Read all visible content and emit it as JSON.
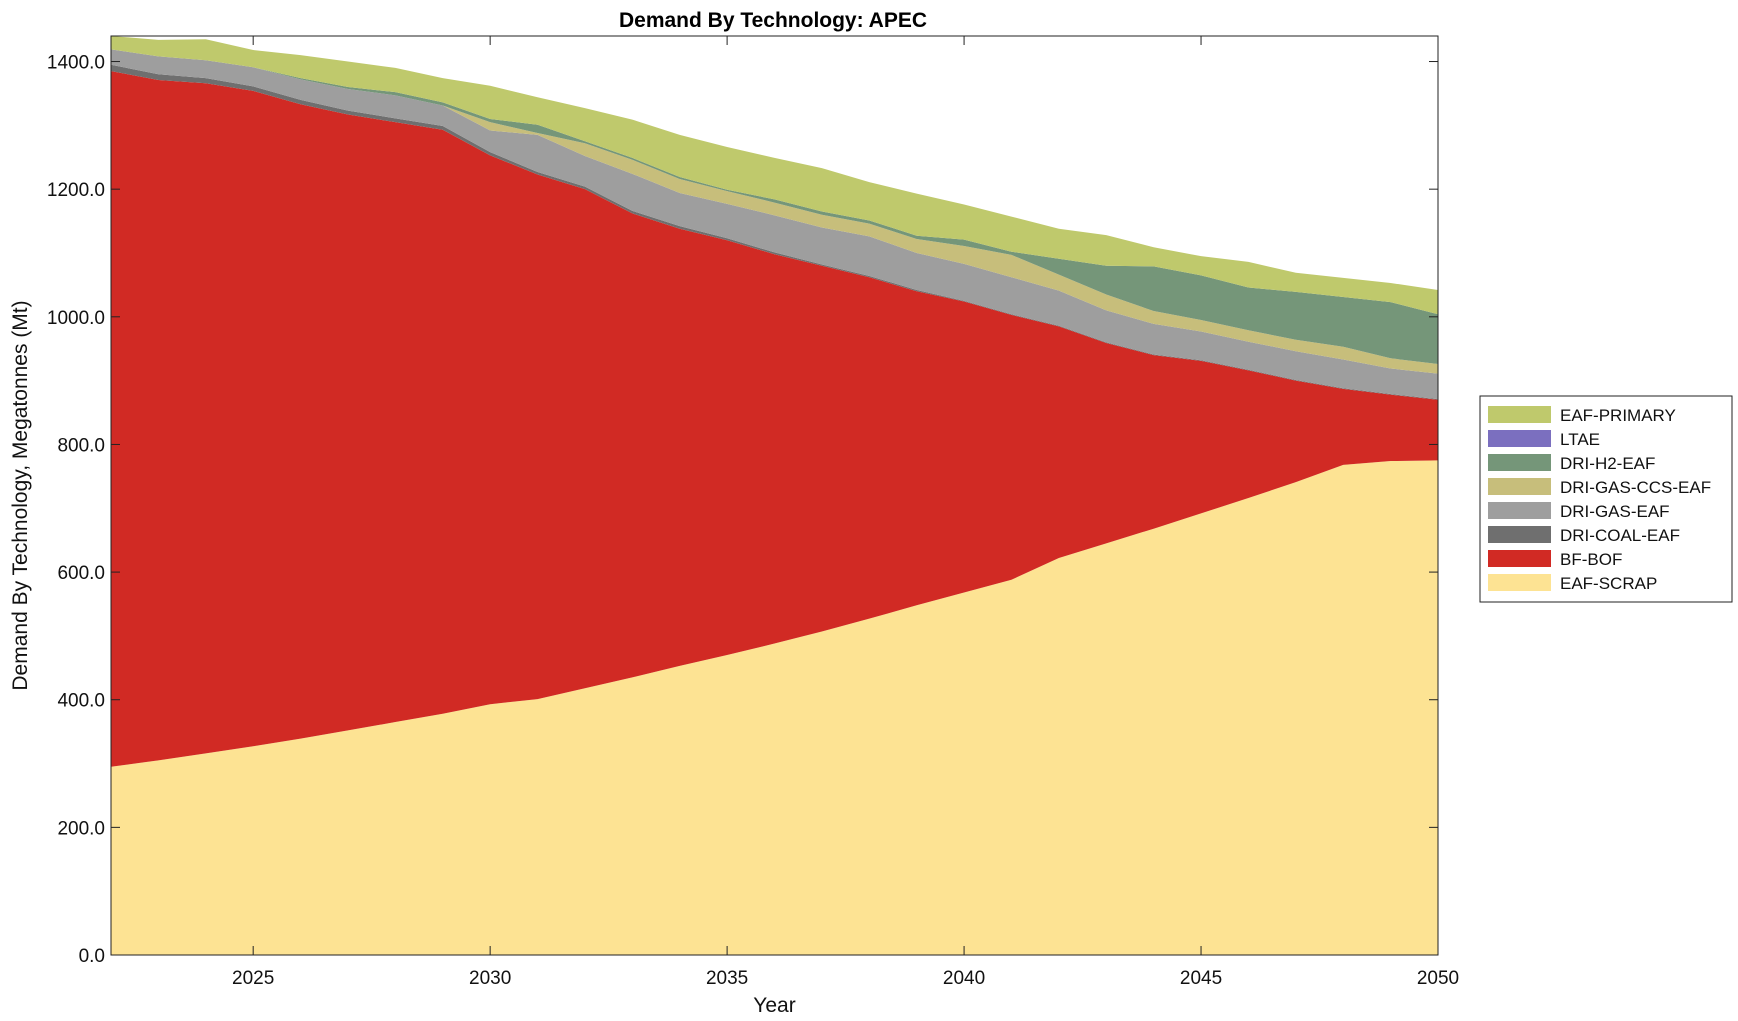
{
  "chart_data": {
    "type": "area",
    "stacked": true,
    "title": "Demand By Technology: APEC",
    "xlabel": "Year",
    "ylabel": "Demand By Technology, Megatonnes (Mt)",
    "xlim": [
      2022,
      2050
    ],
    "ylim": [
      0,
      1440
    ],
    "xticks": [
      2025,
      2030,
      2035,
      2040,
      2045,
      2050
    ],
    "yticks": [
      0,
      200,
      400,
      600,
      800,
      1000,
      1200,
      1400
    ],
    "ytick_labels": [
      "0.0",
      "200.0",
      "400.0",
      "600.0",
      "800.0",
      "1000.0",
      "1200.0",
      "1400.0"
    ],
    "legend_position": "right",
    "x": [
      2022,
      2023,
      2024,
      2025,
      2026,
      2027,
      2028,
      2029,
      2030,
      2031,
      2032,
      2033,
      2034,
      2035,
      2036,
      2037,
      2038,
      2039,
      2040,
      2041,
      2042,
      2043,
      2044,
      2045,
      2046,
      2047,
      2048,
      2049,
      2050
    ],
    "series": [
      {
        "name": "EAF-SCRAP",
        "color": "#FDE393",
        "values": [
          295,
          305,
          316,
          327,
          339,
          352,
          365,
          378,
          393,
          401,
          418,
          435,
          453,
          470,
          488,
          507,
          527,
          548,
          568,
          588,
          622,
          645,
          668,
          692,
          716,
          741,
          768,
          774,
          775
        ]
      },
      {
        "name": "BF-BOF",
        "color": "#D12A24",
        "values": [
          1090,
          1066,
          1050,
          1027,
          994,
          965,
          940,
          915,
          860,
          822,
          782,
          727,
          685,
          650,
          610,
          573,
          535,
          492,
          456,
          415,
          363,
          314,
          272,
          239,
          200,
          159,
          119,
          104,
          95
        ]
      },
      {
        "name": "DRI-COAL-EAF",
        "color": "#6F6F6F",
        "values": [
          10,
          9,
          8,
          7,
          7,
          6,
          6,
          6,
          5,
          4,
          4,
          4,
          4,
          3,
          3,
          2,
          2,
          2,
          1,
          1,
          1,
          1,
          1,
          1,
          1,
          1,
          1,
          1,
          1
        ]
      },
      {
        "name": "DRI-GAS-EAF",
        "color": "#9E9E9E",
        "values": [
          24,
          28,
          28,
          30,
          32,
          34,
          36,
          32,
          34,
          58,
          48,
          58,
          52,
          54,
          58,
          58,
          62,
          58,
          58,
          58,
          55,
          50,
          48,
          45,
          44,
          45,
          45,
          40,
          40
        ]
      },
      {
        "name": "DRI-GAS-CCS-EAF",
        "color": "#C7BE7B",
        "values": [
          0,
          0,
          0,
          0,
          0,
          0,
          0,
          0,
          13,
          3,
          20,
          22,
          22,
          20,
          20,
          20,
          20,
          22,
          28,
          35,
          25,
          25,
          20,
          18,
          18,
          18,
          20,
          16,
          15
        ]
      },
      {
        "name": "DRI-H2-EAF",
        "color": "#759679",
        "values": [
          0,
          0,
          0,
          0,
          2,
          3,
          5,
          5,
          5,
          13,
          3,
          3,
          3,
          2,
          5,
          5,
          5,
          5,
          10,
          5,
          25,
          45,
          70,
          70,
          67,
          75,
          78,
          88,
          78
        ]
      },
      {
        "name": "LTAE",
        "color": "#7B6FBF",
        "values": [
          0,
          0,
          0,
          0,
          0,
          0,
          0,
          0,
          0,
          0,
          0,
          0,
          0,
          0,
          0,
          0,
          0,
          0,
          0,
          0,
          0,
          0,
          0,
          0,
          0,
          0,
          0,
          0,
          0
        ]
      },
      {
        "name": "EAF-PRIMARY",
        "color": "#BFC96C",
        "values": [
          21,
          26,
          33,
          27,
          36,
          40,
          38,
          38,
          52,
          43,
          52,
          60,
          66,
          67,
          65,
          68,
          60,
          66,
          55,
          55,
          47,
          48,
          30,
          30,
          40,
          30,
          30,
          30,
          38
        ]
      }
    ],
    "legend_order": [
      "EAF-PRIMARY",
      "LTAE",
      "DRI-H2-EAF",
      "DRI-GAS-CCS-EAF",
      "DRI-GAS-EAF",
      "DRI-COAL-EAF",
      "BF-BOF",
      "EAF-SCRAP"
    ]
  }
}
